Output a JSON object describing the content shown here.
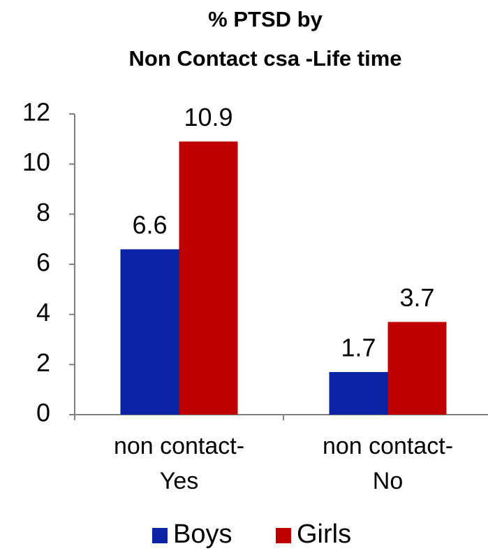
{
  "chart_data": {
    "type": "bar",
    "title": [
      "% PTSD by",
      "Non Contact csa -Life time"
    ],
    "categories": [
      "non contact-Yes",
      "non contact-No"
    ],
    "series": [
      {
        "name": "Boys",
        "color": "#0a24a5",
        "values": [
          6.6,
          1.7
        ]
      },
      {
        "name": "Girls",
        "color": "#c00000",
        "values": [
          10.9,
          3.7
        ]
      }
    ],
    "ylim": [
      0,
      12
    ],
    "yticks": [
      0,
      2,
      4,
      6,
      8,
      10,
      12
    ],
    "grid": false,
    "legend": "bottom"
  }
}
